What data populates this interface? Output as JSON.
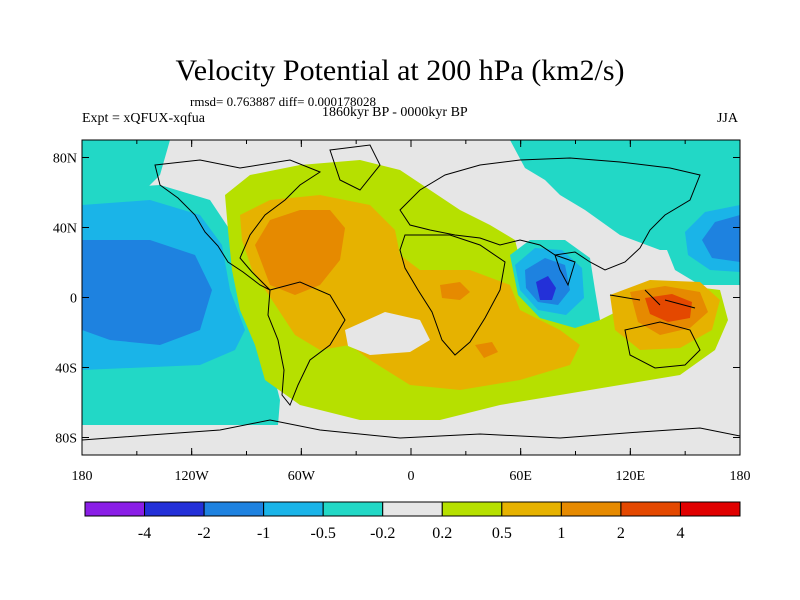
{
  "title": "Velocity Potential at 200 hPa (km2/s)",
  "stats_text": "rmsd= 0.763887 diff= 0.000178028",
  "left_label": "Expt = xQFUX-xqfua",
  "center_label": "1860kyr BP - 0000kyr BP",
  "right_label": "JJA",
  "lon_ticks": [
    "180",
    "120W",
    "60W",
    "0",
    "60E",
    "120E",
    "180"
  ],
  "lat_ticks": [
    "80N",
    "40N",
    "0",
    "40S",
    "80S"
  ],
  "colorbar": {
    "colors": [
      "#8a1ee6",
      "#2330d8",
      "#1e82e0",
      "#1ab4e8",
      "#22d8c6",
      "#e6e6e6",
      "#b6e000",
      "#e6b200",
      "#e68a00",
      "#e44800",
      "#e00000"
    ],
    "labels": [
      "-4",
      "-2",
      "-1",
      "-0.5",
      "-0.2",
      "0.2",
      "0.5",
      "1",
      "2",
      "4"
    ]
  }
}
